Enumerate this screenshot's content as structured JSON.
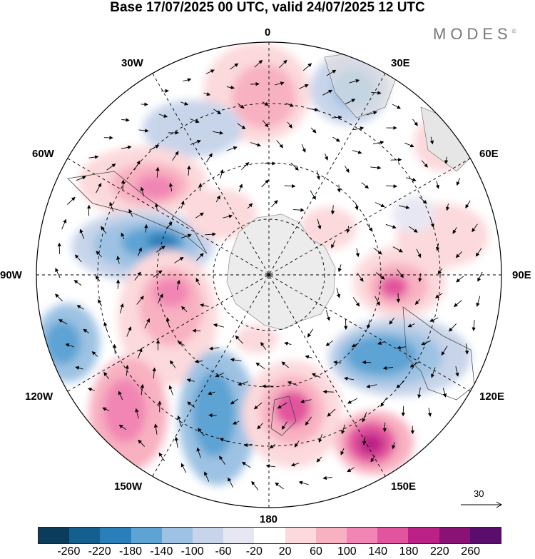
{
  "header": {
    "title": "Base 17/07/2025 00 UTC, valid 24/07/2025 12 UTC",
    "brand": "MODES",
    "brand_mark": "©"
  },
  "map": {
    "projection": "south polar stereographic",
    "meridian_labels": {
      "m0": "0",
      "m30e": "30E",
      "m60e": "60E",
      "m90e": "90E",
      "m120e": "120E",
      "m150e": "150E",
      "m180": "180",
      "m150w": "150W",
      "m120w": "120W",
      "m90w": "90W",
      "m60w": "60W",
      "m30w": "30W"
    },
    "vector_reference": "30"
  },
  "colorbar": {
    "ticks": [
      "-260",
      "-220",
      "-180",
      "-140",
      "-100",
      "-60",
      "-20",
      "20",
      "60",
      "100",
      "140",
      "180",
      "220",
      "260"
    ],
    "colors": [
      "#0c3c5c",
      "#145f8f",
      "#2a7fba",
      "#5da3d3",
      "#9dc2e3",
      "#c8d4ea",
      "#e7e7f3",
      "#ffffff",
      "#fcd9dc",
      "#f8b1c1",
      "#f186b4",
      "#e2549e",
      "#bb2186",
      "#8b1275",
      "#5a0d6c"
    ]
  }
}
